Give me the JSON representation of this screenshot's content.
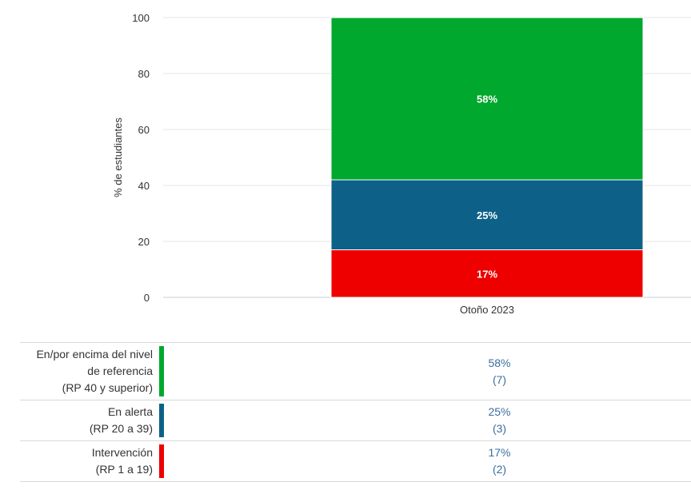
{
  "chart_data": {
    "type": "bar",
    "stacked": true,
    "categories": [
      "Otoño 2023"
    ],
    "ylabel": "% de estudiantes",
    "xlabel": "",
    "ylim": [
      0,
      100
    ],
    "yticks": [
      0,
      20,
      40,
      60,
      80,
      100
    ],
    "grid": true,
    "series": [
      {
        "name": "Intervención",
        "values": [
          17
        ],
        "label": "17%",
        "count": "(2)",
        "color": "#ee0000",
        "desc": [
          "Intervención",
          "(RP 1 a 19)"
        ]
      },
      {
        "name": "En alerta",
        "values": [
          25
        ],
        "label": "25%",
        "count": "(3)",
        "color": "#0d6189",
        "desc": [
          "En alerta",
          "(RP 20 a 39)"
        ]
      },
      {
        "name": "En/por encima del nivel de referencia",
        "values": [
          58
        ],
        "label": "58%",
        "count": "(7)",
        "color": "#00a82d",
        "desc": [
          "En/por encima del nivel",
          "de referencia",
          "(RP 40 y superior)"
        ]
      }
    ]
  }
}
